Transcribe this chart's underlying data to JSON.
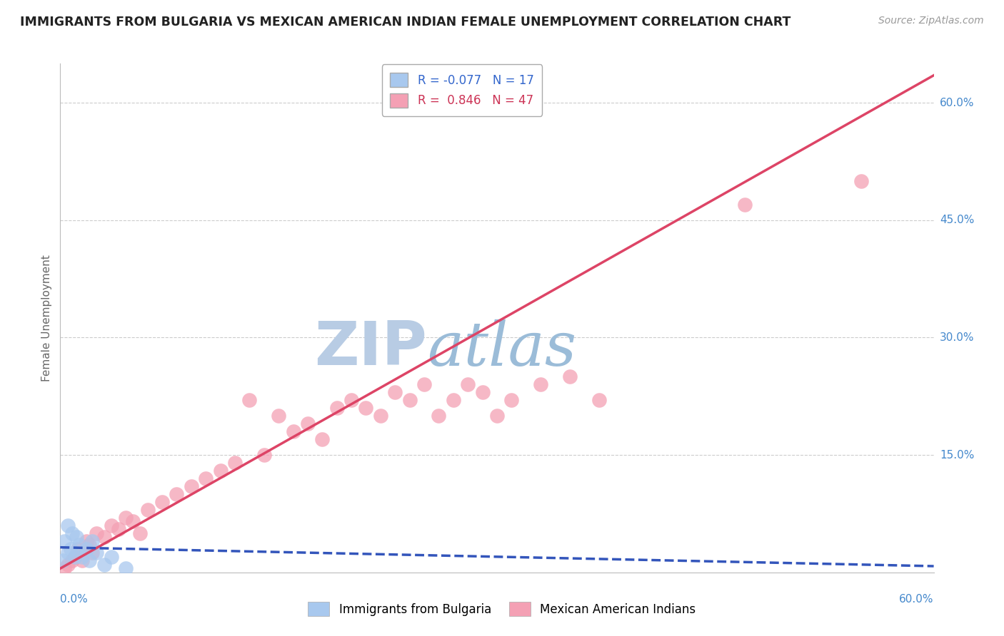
{
  "title": "IMMIGRANTS FROM BULGARIA VS MEXICAN AMERICAN INDIAN FEMALE UNEMPLOYMENT CORRELATION CHART",
  "source_text": "Source: ZipAtlas.com",
  "ylabel": "Female Unemployment",
  "xlim": [
    0.0,
    60.0
  ],
  "ylim": [
    0.0,
    65.0
  ],
  "watermark_zip": "ZIP",
  "watermark_atlas": "atlas",
  "legend_blue_label": "Immigrants from Bulgaria",
  "legend_pink_label": "Mexican American Indians",
  "r_blue": "-0.077",
  "n_blue": "17",
  "r_pink": "0.846",
  "n_pink": "47",
  "blue_color": "#a8c8ee",
  "pink_color": "#f4a0b4",
  "blue_line_color": "#3355bb",
  "pink_line_color": "#dd4466",
  "grid_color": "#cccccc",
  "background_color": "#ffffff",
  "watermark_color_zip": "#b8cce4",
  "watermark_color_atlas": "#9bbcd8",
  "blue_scatter_x": [
    0.2,
    0.3,
    0.5,
    0.5,
    0.7,
    0.8,
    1.0,
    1.1,
    1.3,
    1.5,
    1.8,
    2.0,
    2.2,
    2.5,
    3.0,
    3.5,
    4.5
  ],
  "blue_scatter_y": [
    1.5,
    4.0,
    2.5,
    6.0,
    3.0,
    5.0,
    2.0,
    4.5,
    3.5,
    2.0,
    3.0,
    1.5,
    4.0,
    2.5,
    1.0,
    2.0,
    0.5
  ],
  "pink_scatter_x": [
    0.3,
    0.5,
    0.8,
    1.0,
    1.2,
    1.5,
    1.8,
    2.0,
    2.2,
    2.5,
    3.0,
    3.5,
    4.0,
    4.5,
    5.0,
    5.5,
    6.0,
    7.0,
    8.0,
    9.0,
    10.0,
    11.0,
    12.0,
    13.0,
    14.0,
    15.0,
    16.0,
    17.0,
    18.0,
    19.0,
    20.0,
    21.0,
    22.0,
    23.0,
    24.0,
    25.0,
    26.0,
    27.0,
    28.0,
    29.0,
    30.0,
    31.0,
    33.0,
    35.0,
    37.0,
    47.0,
    55.0
  ],
  "pink_scatter_y": [
    0.5,
    1.0,
    1.5,
    2.0,
    3.0,
    1.5,
    4.0,
    3.5,
    2.5,
    5.0,
    4.5,
    6.0,
    5.5,
    7.0,
    6.5,
    5.0,
    8.0,
    9.0,
    10.0,
    11.0,
    12.0,
    13.0,
    14.0,
    22.0,
    15.0,
    20.0,
    18.0,
    19.0,
    17.0,
    21.0,
    22.0,
    21.0,
    20.0,
    23.0,
    22.0,
    24.0,
    20.0,
    22.0,
    24.0,
    23.0,
    20.0,
    22.0,
    24.0,
    25.0,
    22.0,
    47.0,
    50.0
  ],
  "pink_line_x0": 0.0,
  "pink_line_y0": 0.5,
  "pink_line_x1": 60.0,
  "pink_line_y1": 63.5,
  "blue_line_x0": 0.0,
  "blue_line_y0": 3.2,
  "blue_line_x1": 60.0,
  "blue_line_y1": 0.8
}
